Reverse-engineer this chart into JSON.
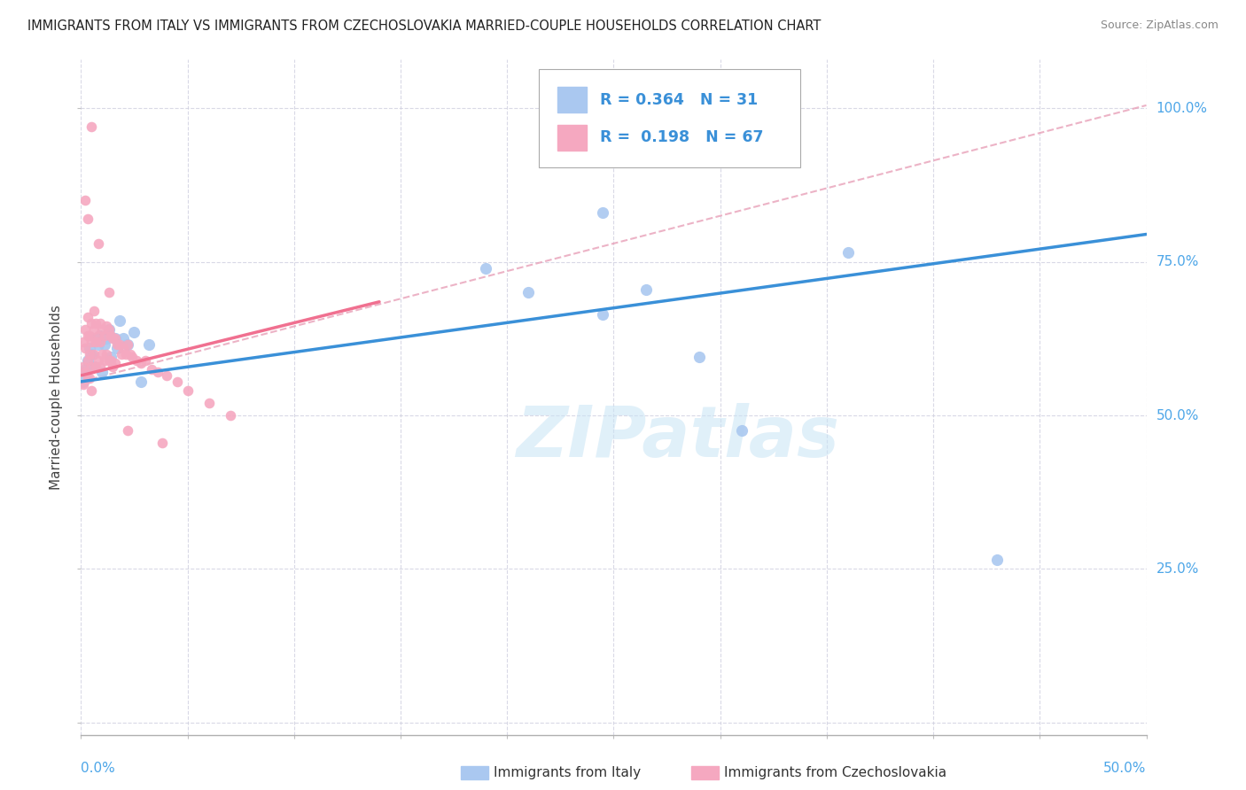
{
  "title": "IMMIGRANTS FROM ITALY VS IMMIGRANTS FROM CZECHOSLOVAKIA MARRIED-COUPLE HOUSEHOLDS CORRELATION CHART",
  "source": "Source: ZipAtlas.com",
  "xlim": [
    0.0,
    0.5
  ],
  "ylim": [
    -0.02,
    1.08
  ],
  "ylabel_ticks": [
    0.0,
    0.25,
    0.5,
    0.75,
    1.0
  ],
  "ylabel_labels": [
    "",
    "25.0%",
    "50.0%",
    "75.0%",
    "100.0%"
  ],
  "xtick_positions": [
    0.0,
    0.05,
    0.1,
    0.15,
    0.2,
    0.25,
    0.3,
    0.35,
    0.4,
    0.45,
    0.5
  ],
  "legend_italy_R": "0.364",
  "legend_italy_N": "31",
  "legend_czech_R": "0.198",
  "legend_czech_N": "67",
  "watermark": "ZIPatlas",
  "italy_color": "#aac8f0",
  "czech_color": "#f5a8c0",
  "italy_line_color": "#3a90d8",
  "czech_line_color": "#f07090",
  "ref_line_color": "#e8a0b8",
  "background_color": "#ffffff",
  "italy_x": [
    0.001,
    0.002,
    0.003,
    0.004,
    0.005,
    0.006,
    0.007,
    0.008,
    0.009,
    0.01,
    0.011,
    0.012,
    0.013,
    0.014,
    0.016,
    0.017,
    0.018,
    0.02,
    0.022,
    0.025,
    0.028,
    0.032,
    0.19,
    0.21,
    0.245,
    0.265,
    0.29,
    0.31,
    0.36,
    0.43,
    0.245
  ],
  "italy_y": [
    0.555,
    0.575,
    0.59,
    0.61,
    0.6,
    0.58,
    0.625,
    0.615,
    0.63,
    0.57,
    0.615,
    0.625,
    0.64,
    0.595,
    0.625,
    0.61,
    0.655,
    0.625,
    0.615,
    0.635,
    0.555,
    0.615,
    0.74,
    0.7,
    0.665,
    0.705,
    0.595,
    0.475,
    0.765,
    0.265,
    0.83
  ],
  "czech_x": [
    0.001,
    0.001,
    0.001,
    0.002,
    0.002,
    0.002,
    0.003,
    0.003,
    0.003,
    0.003,
    0.004,
    0.004,
    0.004,
    0.005,
    0.005,
    0.005,
    0.005,
    0.006,
    0.006,
    0.006,
    0.007,
    0.007,
    0.007,
    0.008,
    0.008,
    0.009,
    0.009,
    0.009,
    0.01,
    0.01,
    0.011,
    0.011,
    0.012,
    0.012,
    0.013,
    0.013,
    0.014,
    0.014,
    0.015,
    0.015,
    0.016,
    0.016,
    0.017,
    0.018,
    0.019,
    0.02,
    0.021,
    0.022,
    0.023,
    0.024,
    0.026,
    0.028,
    0.03,
    0.033,
    0.036,
    0.04,
    0.045,
    0.05,
    0.06,
    0.07,
    0.005,
    0.002,
    0.003,
    0.008,
    0.013,
    0.022,
    0.038
  ],
  "czech_y": [
    0.62,
    0.58,
    0.55,
    0.64,
    0.61,
    0.57,
    0.66,
    0.63,
    0.59,
    0.56,
    0.63,
    0.6,
    0.56,
    0.65,
    0.62,
    0.58,
    0.54,
    0.67,
    0.64,
    0.6,
    0.65,
    0.62,
    0.58,
    0.63,
    0.59,
    0.65,
    0.62,
    0.58,
    0.64,
    0.6,
    0.63,
    0.59,
    0.645,
    0.6,
    0.64,
    0.59,
    0.63,
    0.59,
    0.625,
    0.58,
    0.625,
    0.585,
    0.615,
    0.615,
    0.6,
    0.61,
    0.6,
    0.615,
    0.6,
    0.595,
    0.59,
    0.585,
    0.59,
    0.575,
    0.57,
    0.565,
    0.555,
    0.54,
    0.52,
    0.5,
    0.97,
    0.85,
    0.82,
    0.78,
    0.7,
    0.475,
    0.455
  ],
  "italy_line_x0": 0.0,
  "italy_line_y0": 0.555,
  "italy_line_x1": 0.5,
  "italy_line_y1": 0.795,
  "czech_line_x0": 0.0,
  "czech_line_y0": 0.565,
  "czech_line_x1": 0.14,
  "czech_line_y1": 0.685,
  "ref_line_x0": 0.0,
  "ref_line_y0": 0.555,
  "ref_line_x1": 0.5,
  "ref_line_y1": 1.005,
  "grid_color": "#d0d0e0",
  "ylabel_color": "#4da6e8",
  "xlabel_color": "#4da6e8"
}
